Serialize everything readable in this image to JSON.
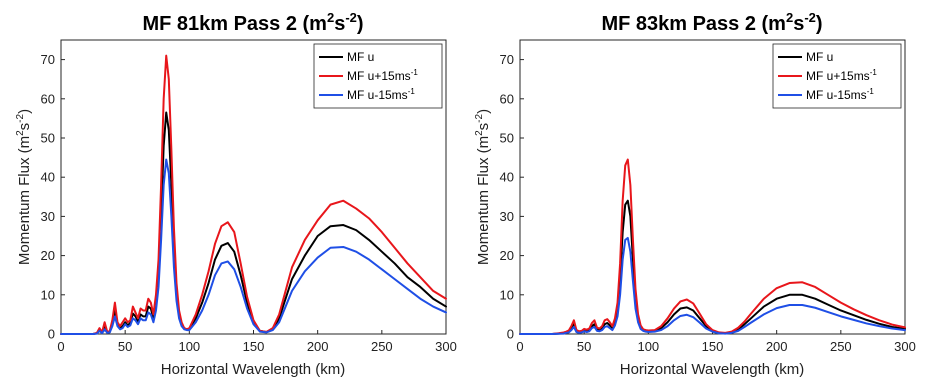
{
  "chart_data": [
    {
      "type": "line",
      "title": "MF 81km Pass 2 (m",
      "title_sup": "2",
      "title_mid": "s",
      "title_sup2": "-2",
      "title_end": ")",
      "xlabel": "Horizontal Wavelength (km)",
      "ylabel": "Momentum Flux (m",
      "ylabel_sup": "2",
      "ylabel_mid": "s",
      "ylabel_sup2": "-2",
      "ylabel_end": ")",
      "xlim": [
        0,
        300
      ],
      "ylim": [
        0,
        75
      ],
      "xticks": [
        "0",
        "50",
        "100",
        "150",
        "200",
        "250",
        "300"
      ],
      "yticks": [
        "0",
        "10",
        "20",
        "30",
        "40",
        "50",
        "60",
        "70"
      ],
      "grid": false,
      "legend_position": "top-right",
      "series": [
        {
          "name": "MF u",
          "color": "#000000",
          "x": [
            0,
            25,
            28,
            30,
            32,
            34,
            36,
            38,
            40,
            42,
            44,
            46,
            48,
            50,
            52,
            54,
            56,
            58,
            60,
            62,
            64,
            66,
            68,
            70,
            72,
            74,
            76,
            78,
            80,
            82,
            84,
            86,
            88,
            90,
            92,
            94,
            96,
            98,
            100,
            105,
            110,
            115,
            120,
            125,
            130,
            135,
            140,
            145,
            150,
            155,
            160,
            165,
            170,
            175,
            180,
            190,
            200,
            210,
            220,
            230,
            240,
            250,
            260,
            270,
            280,
            290,
            300
          ],
          "y": [
            0,
            0,
            0.2,
            1.2,
            0.3,
            1.8,
            0.4,
            0.5,
            2.5,
            6.2,
            2.5,
            1.5,
            2.0,
            3.0,
            2.2,
            2.8,
            5.2,
            4.5,
            3.2,
            5.0,
            4.5,
            4.5,
            7.0,
            6.5,
            4.0,
            8.0,
            15.0,
            30.0,
            48.0,
            56.5,
            52.0,
            38.0,
            22.0,
            11.0,
            5.0,
            2.5,
            1.5,
            1.2,
            1.3,
            4.0,
            8.0,
            13.0,
            19.0,
            22.5,
            23.2,
            21.0,
            15.0,
            8.0,
            3.0,
            0.8,
            0.5,
            1.2,
            4.0,
            9.0,
            14.0,
            20.0,
            25.0,
            27.5,
            27.8,
            26.5,
            24.0,
            21.0,
            18.0,
            14.5,
            12.0,
            9.0,
            7.0
          ]
        },
        {
          "name": "MF u+15ms",
          "name_sup": "-1",
          "color": "#e8161b",
          "x": [
            0,
            25,
            28,
            30,
            32,
            34,
            36,
            38,
            40,
            42,
            44,
            46,
            48,
            50,
            52,
            54,
            56,
            58,
            60,
            62,
            64,
            66,
            68,
            70,
            72,
            74,
            76,
            78,
            80,
            82,
            84,
            86,
            88,
            90,
            92,
            94,
            96,
            98,
            100,
            105,
            110,
            115,
            120,
            125,
            130,
            135,
            140,
            145,
            150,
            155,
            160,
            165,
            170,
            175,
            180,
            190,
            200,
            210,
            220,
            230,
            240,
            250,
            260,
            270,
            280,
            290,
            300
          ],
          "y": [
            0,
            0,
            0.3,
            1.5,
            0.4,
            3.0,
            0.6,
            0.8,
            3.5,
            8.0,
            3.0,
            2.0,
            3.0,
            4.0,
            3.0,
            3.5,
            7.0,
            5.5,
            4.0,
            6.5,
            6.0,
            6.0,
            9.0,
            8.0,
            5.0,
            10.0,
            19.0,
            38.0,
            60.0,
            71.0,
            65.0,
            47.0,
            27.0,
            13.0,
            6.0,
            3.0,
            1.5,
            1.2,
            1.5,
            5.0,
            10.0,
            16.0,
            23.0,
            27.5,
            28.5,
            26.0,
            18.0,
            9.5,
            3.5,
            0.8,
            0.5,
            1.5,
            5.0,
            11.0,
            17.0,
            24.0,
            29.0,
            33.0,
            34.0,
            32.0,
            29.5,
            26.0,
            22.0,
            18.0,
            14.5,
            11.0,
            9.0
          ]
        },
        {
          "name": "MF u-15ms",
          "name_sup": "-1",
          "color": "#1f4fe6",
          "x": [
            0,
            25,
            28,
            30,
            32,
            34,
            36,
            38,
            40,
            42,
            44,
            46,
            48,
            50,
            52,
            54,
            56,
            58,
            60,
            62,
            64,
            66,
            68,
            70,
            72,
            74,
            76,
            78,
            80,
            82,
            84,
            86,
            88,
            90,
            92,
            94,
            96,
            98,
            100,
            105,
            110,
            115,
            120,
            125,
            130,
            135,
            140,
            145,
            150,
            155,
            160,
            165,
            170,
            175,
            180,
            190,
            200,
            210,
            220,
            230,
            240,
            250,
            260,
            270,
            280,
            290,
            300
          ],
          "y": [
            0,
            0,
            0.1,
            0.8,
            0.2,
            1.2,
            0.3,
            0.4,
            2.0,
            4.5,
            2.0,
            1.2,
            1.5,
            2.5,
            1.8,
            2.2,
            4.0,
            3.5,
            2.5,
            4.0,
            3.5,
            3.5,
            5.5,
            5.0,
            3.0,
            6.0,
            12.0,
            24.0,
            38.0,
            44.5,
            41.0,
            30.0,
            17.0,
            8.5,
            4.0,
            2.0,
            1.2,
            1.0,
            1.0,
            3.0,
            6.0,
            10.0,
            15.0,
            18.0,
            18.5,
            16.5,
            12.0,
            6.5,
            2.5,
            0.6,
            0.4,
            1.0,
            3.0,
            7.0,
            11.0,
            16.0,
            19.5,
            22.0,
            22.2,
            21.0,
            19.0,
            16.5,
            14.0,
            11.5,
            9.0,
            7.0,
            5.5
          ]
        }
      ]
    },
    {
      "type": "line",
      "title": "MF 83km Pass 2 (m",
      "title_sup": "2",
      "title_mid": "s",
      "title_sup2": "-2",
      "title_end": ")",
      "xlabel": "Horizontal Wavelength (km)",
      "ylabel": "Momentum Flux (m",
      "ylabel_sup": "2",
      "ylabel_mid": "s",
      "ylabel_sup2": "-2",
      "ylabel_end": ")",
      "xlim": [
        0,
        300
      ],
      "ylim": [
        0,
        75
      ],
      "xticks": [
        "0",
        "50",
        "100",
        "150",
        "200",
        "250",
        "300"
      ],
      "yticks": [
        "0",
        "10",
        "20",
        "30",
        "40",
        "50",
        "60",
        "70"
      ],
      "grid": false,
      "legend_position": "top-right",
      "series": [
        {
          "name": "MF u",
          "color": "#000000",
          "x": [
            0,
            25,
            30,
            34,
            36,
            38,
            40,
            42,
            44,
            46,
            48,
            50,
            52,
            54,
            56,
            58,
            60,
            62,
            64,
            66,
            68,
            70,
            72,
            74,
            76,
            78,
            80,
            82,
            84,
            86,
            88,
            90,
            92,
            94,
            96,
            98,
            100,
            105,
            110,
            115,
            120,
            125,
            130,
            135,
            140,
            145,
            150,
            155,
            160,
            165,
            170,
            175,
            180,
            190,
            200,
            210,
            220,
            230,
            240,
            250,
            260,
            270,
            280,
            290,
            300
          ],
          "y": [
            0,
            0,
            0.1,
            0.2,
            0.4,
            0.6,
            1.5,
            2.5,
            0.8,
            0.5,
            0.6,
            1.0,
            0.8,
            1.0,
            2.0,
            2.5,
            1.2,
            1.0,
            1.5,
            2.5,
            2.8,
            2.2,
            1.5,
            3.0,
            6.0,
            14.0,
            26.0,
            33.0,
            34.0,
            30.0,
            19.0,
            9.0,
            4.0,
            1.8,
            1.0,
            0.8,
            0.7,
            0.8,
            1.5,
            3.0,
            5.0,
            6.5,
            6.8,
            6.0,
            4.0,
            2.0,
            0.8,
            0.3,
            0.2,
            0.4,
            1.2,
            2.5,
            4.0,
            7.0,
            9.0,
            10.0,
            10.0,
            9.0,
            7.5,
            6.0,
            4.8,
            3.6,
            2.6,
            1.8,
            1.3
          ]
        },
        {
          "name": "MF u+15ms",
          "name_sup": "-1",
          "color": "#e8161b",
          "x": [
            0,
            25,
            30,
            34,
            36,
            38,
            40,
            42,
            44,
            46,
            48,
            50,
            52,
            54,
            56,
            58,
            60,
            62,
            64,
            66,
            68,
            70,
            72,
            74,
            76,
            78,
            80,
            82,
            84,
            86,
            88,
            90,
            92,
            94,
            96,
            98,
            100,
            105,
            110,
            115,
            120,
            125,
            130,
            135,
            140,
            145,
            150,
            155,
            160,
            165,
            170,
            175,
            180,
            190,
            200,
            210,
            220,
            230,
            240,
            250,
            260,
            270,
            280,
            290,
            300
          ],
          "y": [
            0,
            0,
            0.2,
            0.4,
            0.6,
            0.9,
            2.0,
            3.5,
            1.0,
            0.7,
            0.8,
            1.3,
            1.1,
            1.4,
            2.8,
            3.5,
            1.6,
            1.4,
            2.0,
            3.5,
            3.8,
            3.0,
            2.0,
            4.0,
            8.0,
            18.0,
            34.0,
            43.0,
            44.5,
            38.0,
            24.0,
            11.5,
            5.0,
            2.2,
            1.2,
            1.0,
            0.9,
            1.0,
            2.0,
            4.0,
            6.5,
            8.3,
            8.8,
            7.8,
            5.2,
            2.5,
            1.0,
            0.4,
            0.3,
            0.6,
            1.6,
            3.2,
            5.2,
            9.0,
            11.7,
            13.0,
            13.2,
            12.0,
            10.0,
            8.0,
            6.3,
            4.8,
            3.5,
            2.4,
            1.7
          ]
        },
        {
          "name": "MF u-15ms",
          "name_sup": "-1",
          "color": "#1f4fe6",
          "x": [
            0,
            25,
            30,
            34,
            36,
            38,
            40,
            42,
            44,
            46,
            48,
            50,
            52,
            54,
            56,
            58,
            60,
            62,
            64,
            66,
            68,
            70,
            72,
            74,
            76,
            78,
            80,
            82,
            84,
            86,
            88,
            90,
            92,
            94,
            96,
            98,
            100,
            105,
            110,
            115,
            120,
            125,
            130,
            135,
            140,
            145,
            150,
            155,
            160,
            165,
            170,
            175,
            180,
            190,
            200,
            210,
            220,
            230,
            240,
            250,
            260,
            270,
            280,
            290,
            300
          ],
          "y": [
            0,
            0,
            0.05,
            0.1,
            0.3,
            0.4,
            1.0,
            1.8,
            0.5,
            0.3,
            0.4,
            0.7,
            0.5,
            0.7,
            1.5,
            1.8,
            0.8,
            0.7,
            1.0,
            1.8,
            2.0,
            1.5,
            1.0,
            2.2,
            4.5,
            10.0,
            19.0,
            24.0,
            24.5,
            21.0,
            13.5,
            6.5,
            3.0,
            1.3,
            0.8,
            0.6,
            0.5,
            0.6,
            1.0,
            2.0,
            3.5,
            4.6,
            4.9,
            4.3,
            2.9,
            1.4,
            0.6,
            0.2,
            0.1,
            0.3,
            0.8,
            1.8,
            2.9,
            5.0,
            6.6,
            7.4,
            7.4,
            6.7,
            5.6,
            4.5,
            3.6,
            2.7,
            2.0,
            1.4,
            1.0
          ]
        }
      ]
    }
  ]
}
